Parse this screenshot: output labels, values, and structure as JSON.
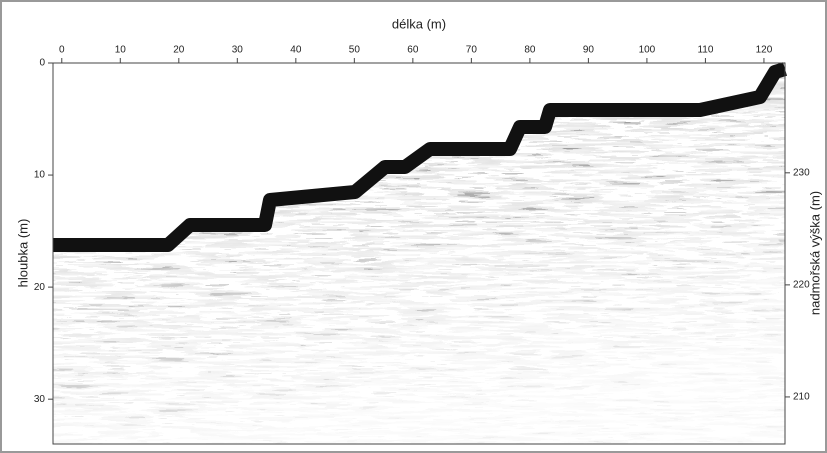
{
  "chart_data": {
    "type": "radargram",
    "x_label": "délka (m)",
    "y_label": "hloubka (m)",
    "y2_label": "nadmořská výška (m)",
    "xlim": [
      -1.5,
      123.6
    ],
    "xticks": [
      0,
      10,
      20,
      30,
      40,
      50,
      60,
      70,
      80,
      90,
      100,
      110,
      120
    ],
    "ylim": [
      0,
      34
    ],
    "yticks": [
      0,
      10,
      20,
      30
    ],
    "y2lim": [
      239.8,
      205.8
    ],
    "y2ticks": [
      230,
      220,
      210
    ]
  }
}
